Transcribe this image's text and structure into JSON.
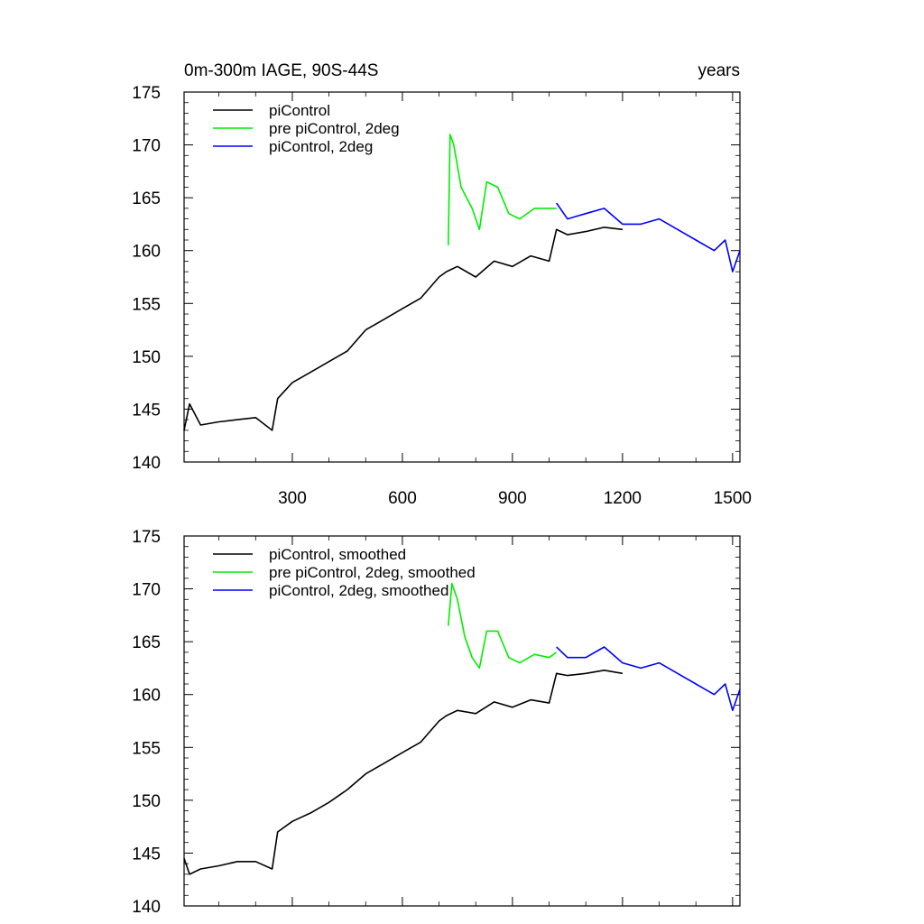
{
  "chart_data": [
    {
      "type": "line",
      "title": "0m-300m IAGE, 90S-44S",
      "units_label": "years",
      "xlim": [
        5,
        1520
      ],
      "ylim": [
        140,
        175
      ],
      "x_ticks": [
        300,
        600,
        900,
        1200,
        1500
      ],
      "x_tick_labels": [
        "300",
        "600",
        "900",
        "1200",
        "1500"
      ],
      "y_ticks": [
        140,
        145,
        150,
        155,
        160,
        165,
        170,
        175
      ],
      "y_tick_labels": [
        "140",
        "145",
        "150",
        "155",
        "160",
        "165",
        "170",
        "175"
      ],
      "legend": "top-left",
      "series": [
        {
          "name": "piControl",
          "color": "#000000",
          "x": [
            5,
            20,
            50,
            100,
            150,
            200,
            245,
            260,
            300,
            350,
            400,
            450,
            500,
            550,
            600,
            650,
            700,
            720,
            750,
            800,
            850,
            900,
            950,
            1000,
            1020,
            1050,
            1100,
            1150,
            1200
          ],
          "y": [
            143,
            145.5,
            143.5,
            143.8,
            144,
            144.2,
            143,
            146,
            147.5,
            148.5,
            149.5,
            150.5,
            152.5,
            153.5,
            154.5,
            155.5,
            157.5,
            158,
            158.5,
            157.5,
            159,
            158.5,
            159.5,
            159,
            162,
            161.5,
            161.8,
            162.2,
            162
          ]
        },
        {
          "name": "pre piControl, 2deg",
          "color": "#00ee00",
          "x": [
            725,
            730,
            740,
            760,
            790,
            810,
            830,
            860,
            890,
            920,
            960,
            1000,
            1020
          ],
          "y": [
            160.5,
            171,
            170,
            166,
            164,
            162,
            166.5,
            166,
            163.5,
            163,
            164,
            164,
            164
          ]
        },
        {
          "name": "piControl, 2deg",
          "color": "#0000ff",
          "x": [
            1020,
            1050,
            1100,
            1150,
            1200,
            1250,
            1300,
            1350,
            1400,
            1450,
            1480,
            1500,
            1520
          ],
          "y": [
            164.5,
            163,
            163.5,
            164,
            162.5,
            162.5,
            163,
            162,
            161,
            160,
            161,
            158,
            160
          ]
        }
      ]
    },
    {
      "type": "line",
      "title": "",
      "xlim": [
        5,
        1520
      ],
      "ylim": [
        140,
        175
      ],
      "x_ticks": [
        300,
        600,
        900,
        1200,
        1500
      ],
      "y_ticks": [
        140,
        145,
        150,
        155,
        160,
        165,
        170,
        175
      ],
      "y_tick_labels": [
        "140",
        "145",
        "150",
        "155",
        "160",
        "165",
        "170",
        "175"
      ],
      "legend": "top-left",
      "series": [
        {
          "name": "piControl, smoothed",
          "color": "#000000",
          "x": [
            5,
            20,
            50,
            100,
            150,
            200,
            245,
            260,
            300,
            350,
            400,
            450,
            500,
            550,
            600,
            650,
            700,
            720,
            750,
            800,
            850,
            900,
            950,
            1000,
            1020,
            1050,
            1100,
            1150,
            1200
          ],
          "y": [
            144.5,
            143,
            143.5,
            143.8,
            144.2,
            144.2,
            143.5,
            147,
            148,
            148.8,
            149.8,
            151,
            152.5,
            153.5,
            154.5,
            155.5,
            157.5,
            158,
            158.5,
            158.2,
            159.3,
            158.8,
            159.5,
            159.2,
            162,
            161.8,
            162,
            162.3,
            162
          ]
        },
        {
          "name": "pre piControl, 2deg, smoothed",
          "color": "#00ee00",
          "x": [
            725,
            735,
            750,
            770,
            790,
            810,
            830,
            860,
            890,
            920,
            960,
            1000,
            1020
          ],
          "y": [
            166.5,
            170.5,
            169,
            165.5,
            163.5,
            162.5,
            166,
            166,
            163.5,
            163,
            163.8,
            163.5,
            164
          ]
        },
        {
          "name": "piControl, 2deg, smoothed",
          "color": "#0000ff",
          "x": [
            1020,
            1050,
            1100,
            1150,
            1200,
            1250,
            1300,
            1350,
            1400,
            1450,
            1480,
            1500,
            1520
          ],
          "y": [
            164.5,
            163.5,
            163.5,
            164.5,
            163,
            162.5,
            163,
            162,
            161,
            160,
            161,
            158.5,
            160.5
          ]
        }
      ]
    }
  ]
}
